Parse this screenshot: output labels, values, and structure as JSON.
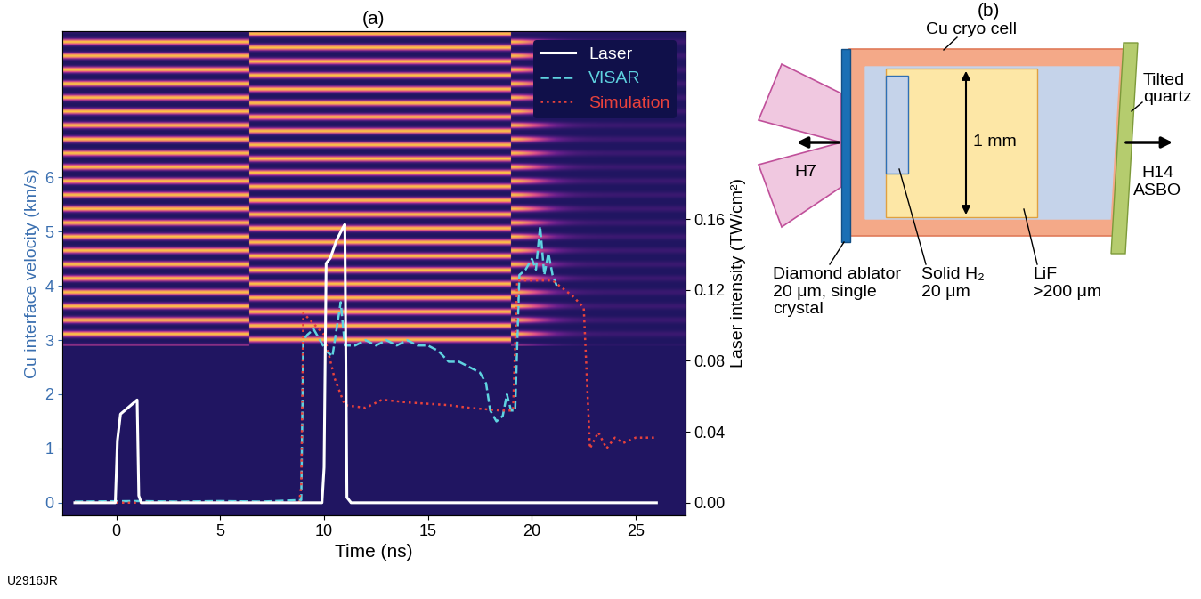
{
  "chart_data": {
    "type": "line",
    "title": "(a)",
    "x_label": "Time (ns)",
    "y_label": "Cu interface velocity (km/s)",
    "y2_label": "Laser intensity (TW/cm²)",
    "xlim": [
      -2.6,
      27.4
    ],
    "xticks": [
      0,
      5,
      10,
      15,
      20,
      25
    ],
    "ylim": [
      -0.23,
      8.7
    ],
    "yticks": [
      0,
      1,
      2,
      3,
      4,
      5,
      6
    ],
    "y2lim": [
      -0.007,
      0.266
    ],
    "y2ticks": [
      {
        "value": 0,
        "label": "0.00"
      },
      0.04,
      0.08,
      0.12,
      0.16
    ],
    "legend": "upper right",
    "series": [
      {
        "name": "Laser",
        "color": "#ffffff",
        "line_style": "solid",
        "axis": "y2",
        "x": [
          -2.0,
          -0.05,
          0.05,
          0.2,
          0.5,
          0.8,
          1.0,
          1.08,
          1.2,
          9.9,
          10.0,
          10.1,
          10.3,
          10.6,
          10.9,
          11.0,
          11.1,
          11.3,
          26.0
        ],
        "values": [
          0,
          0,
          0.035,
          0.05,
          0.053,
          0.056,
          0.058,
          0.004,
          0,
          0,
          0.02,
          0.135,
          0.138,
          0.148,
          0.155,
          0.157,
          0.003,
          0,
          0
        ]
      },
      {
        "name": "VISAR",
        "color": "#5fd3e0",
        "line_style": "dashed",
        "axis": "y",
        "x": [
          -2.0,
          1,
          3,
          5,
          7,
          8.9,
          9.0,
          9.2,
          9.5,
          9.8,
          10.1,
          10.4,
          10.6,
          10.8,
          11.0,
          11.5,
          12.0,
          12.5,
          13.0,
          13.5,
          14.0,
          14.5,
          15.0,
          15.5,
          16.0,
          16.5,
          17.0,
          17.5,
          17.8,
          18.0,
          18.3,
          18.6,
          18.8,
          19.0,
          19.2,
          19.4,
          19.7,
          20.0,
          20.2,
          20.4,
          20.6,
          20.8,
          21.0,
          21.2
        ],
        "values": [
          0.02,
          0.03,
          0.02,
          0.03,
          0.02,
          0.05,
          3.0,
          3.1,
          3.2,
          3.0,
          2.8,
          2.7,
          3.2,
          3.7,
          2.9,
          2.9,
          3.0,
          2.9,
          3.0,
          2.9,
          3.0,
          2.9,
          2.9,
          2.8,
          2.6,
          2.6,
          2.5,
          2.4,
          2.2,
          1.7,
          1.5,
          1.6,
          2.0,
          1.7,
          1.7,
          4.2,
          4.3,
          4.5,
          4.3,
          5.1,
          4.2,
          4.6,
          4.2,
          4.0
        ]
      },
      {
        "name": "Simulation",
        "color": "#e8423c",
        "line_style": "dotted",
        "axis": "y",
        "x": [
          -2.0,
          8.8,
          8.9,
          9.0,
          9.5,
          10.0,
          10.5,
          11.0,
          12.0,
          12.8,
          14.0,
          16.0,
          17.0,
          18.5,
          19.1,
          19.3,
          20.0,
          21.0,
          22.0,
          22.5,
          22.8,
          23.2,
          23.6,
          24.0,
          24.4,
          25.0,
          26.0
        ],
        "values": [
          0.0,
          0.0,
          0.3,
          3.5,
          3.3,
          3.1,
          2.3,
          1.8,
          1.75,
          1.9,
          1.85,
          1.8,
          1.75,
          1.7,
          1.7,
          4.1,
          4.1,
          4.1,
          3.8,
          3.6,
          1.0,
          1.3,
          1.0,
          1.2,
          1.1,
          1.2,
          1.2
        ]
      }
    ]
  },
  "diagram": {
    "title": "(b)",
    "labels": {
      "cell": "Cu cryo cell",
      "quartz": "Tilted\nquartz",
      "ablator": "Diamond ablator\n20 μm, single\ncrystal",
      "h2": "Solid H₂\n20 μm",
      "lif": "LiF\n>200 μm",
      "size": "1 mm",
      "beam_left": "H7",
      "beam_right": "H14\nASBO"
    }
  },
  "figure_id": "U2916JR"
}
